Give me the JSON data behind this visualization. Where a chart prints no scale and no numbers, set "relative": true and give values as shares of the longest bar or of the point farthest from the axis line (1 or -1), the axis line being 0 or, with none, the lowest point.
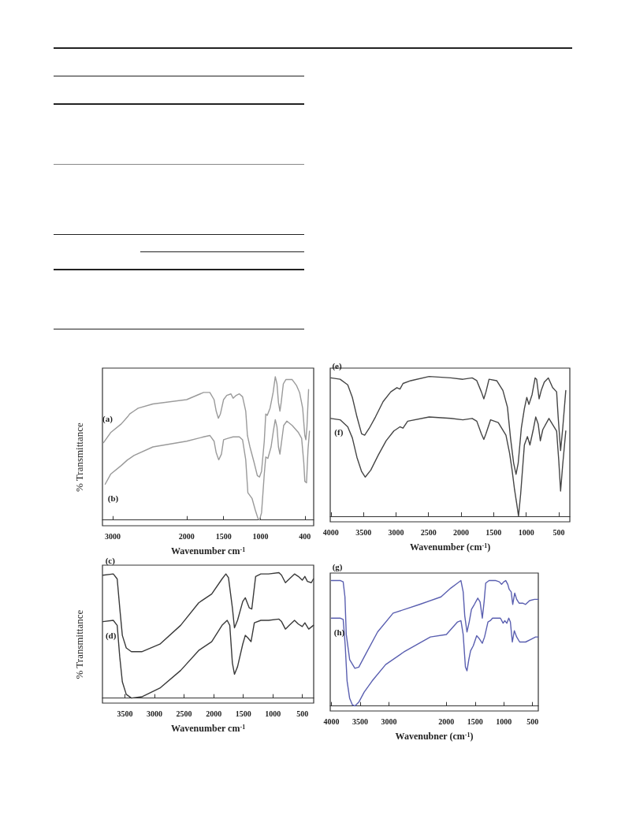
{
  "chart_data": [
    {
      "type": "line",
      "relative": true,
      "xlabel": "Wavenumber cm$^{-1}$",
      "ylabel": "% Transmittance",
      "xlim": [
        3140,
        280
      ],
      "xticks": [
        3000,
        2000,
        1500,
        1000,
        400
      ],
      "grid": false,
      "legend": false,
      "marker": "none",
      "line_style": "solid",
      "series": [
        {
          "name": "(a)",
          "color": "#9a9a9a",
          "x": [
            3126,
            3029,
            2886,
            2800,
            2771,
            2714,
            2657,
            2457,
            2000,
            1771,
            1686,
            1629,
            1600,
            1571,
            1543,
            1500,
            1457,
            1400,
            1371,
            1329,
            1286,
            1243,
            1200,
            1177,
            1143,
            1086,
            1043,
            1014,
            986,
            949,
            929,
            909,
            871,
            829,
            800,
            777,
            757,
            737,
            720,
            691,
            657,
            571,
            514,
            471,
            429,
            400,
            386,
            371,
            349
          ],
          "values": [
            0.54,
            0.61,
            0.67,
            0.72,
            0.74,
            0.76,
            0.78,
            0.81,
            0.84,
            0.89,
            0.89,
            0.84,
            0.76,
            0.71,
            0.74,
            0.84,
            0.87,
            0.88,
            0.85,
            0.87,
            0.88,
            0.86,
            0.76,
            0.59,
            0.51,
            0.4,
            0.31,
            0.3,
            0.34,
            0.55,
            0.74,
            0.73,
            0.78,
            0.89,
            1,
            0.95,
            0.82,
            0.76,
            0.82,
            0.95,
            0.98,
            0.98,
            0.94,
            0.89,
            0.78,
            0.59,
            0.56,
            0.65,
            0.91
          ]
        },
        {
          "name": "(b)",
          "color": "#9a9a9a",
          "x": [
            3103,
            3029,
            2886,
            2800,
            2771,
            2714,
            2457,
            2000,
            1771,
            1686,
            1629,
            1600,
            1566,
            1529,
            1500,
            1443,
            1371,
            1286,
            1243,
            1200,
            1171,
            1114,
            1071,
            1034,
            1014,
            986,
            949,
            929,
            900,
            857,
            823,
            800,
            777,
            757,
            737,
            714,
            686,
            643,
            571,
            486,
            443,
            414,
            400,
            377,
            357,
            337
          ],
          "values": [
            0.25,
            0.32,
            0.38,
            0.42,
            0.43,
            0.45,
            0.51,
            0.55,
            0.58,
            0.59,
            0.55,
            0.47,
            0.42,
            0.46,
            0.56,
            0.57,
            0.58,
            0.58,
            0.56,
            0.42,
            0.19,
            0.15,
            0.07,
            0.01,
            0,
            0.05,
            0.32,
            0.44,
            0.43,
            0.51,
            0.63,
            0.7,
            0.65,
            0.51,
            0.46,
            0.55,
            0.66,
            0.69,
            0.66,
            0.61,
            0.57,
            0.4,
            0.27,
            0.26,
            0.49,
            0.62
          ]
        }
      ]
    },
    {
      "type": "line",
      "relative": true,
      "xlabel": "Wavenumber (cm$^{-1}$)",
      "xlim": [
        4010,
        330
      ],
      "xticks": [
        4000,
        3500,
        3000,
        2500,
        2000,
        1500,
        1000,
        500
      ],
      "grid": false,
      "legend": false,
      "marker": "none",
      "line_style": "solid",
      "series": [
        {
          "name": "(e)",
          "color": "#454545",
          "x": [
            4000,
            3858,
            3741,
            3670,
            3599,
            3528,
            3481,
            3410,
            3316,
            3198,
            3080,
            2986,
            2939,
            2892,
            2774,
            2491,
            2160,
            1972,
            1830,
            1759,
            1689,
            1651,
            1618,
            1571,
            1453,
            1358,
            1288,
            1241,
            1193,
            1156,
            1123,
            1075,
            1028,
            991,
            958,
            910,
            863,
            840,
            802,
            769,
            722,
            660,
            594,
            533,
            509,
            472,
            439,
            392
          ],
          "values": [
            0.99,
            0.98,
            0.94,
            0.85,
            0.71,
            0.59,
            0.58,
            0.63,
            0.71,
            0.82,
            0.89,
            0.92,
            0.91,
            0.95,
            0.97,
            1,
            0.99,
            0.98,
            0.99,
            0.97,
            0.89,
            0.84,
            0.89,
            0.98,
            0.97,
            0.9,
            0.78,
            0.56,
            0.38,
            0.3,
            0.38,
            0.63,
            0.77,
            0.85,
            0.8,
            0.87,
            0.99,
            0.98,
            0.84,
            0.9,
            0.96,
            0.99,
            0.92,
            0.89,
            0.71,
            0.47,
            0.63,
            0.9
          ]
        },
        {
          "name": "(f)",
          "color": "#454545",
          "x": [
            4000,
            3858,
            3741,
            3670,
            3599,
            3528,
            3472,
            3387,
            3269,
            3151,
            3033,
            2939,
            2892,
            2821,
            2491,
            2160,
            1972,
            1830,
            1759,
            1689,
            1651,
            1618,
            1547,
            1429,
            1311,
            1255,
            1217,
            1179,
            1146,
            1118,
            1085,
            1028,
            981,
            943,
            887,
            854,
            816,
            783,
            745,
            651,
            533,
            500,
            472,
            439,
            392
          ],
          "values": [
            0.7,
            0.69,
            0.64,
            0.56,
            0.42,
            0.32,
            0.28,
            0.33,
            0.44,
            0.54,
            0.61,
            0.64,
            0.63,
            0.68,
            0.71,
            0.7,
            0.69,
            0.7,
            0.68,
            0.59,
            0.55,
            0.59,
            0.69,
            0.67,
            0.58,
            0.45,
            0.33,
            0.19,
            0.09,
            0,
            0.16,
            0.51,
            0.57,
            0.51,
            0.63,
            0.71,
            0.66,
            0.54,
            0.62,
            0.7,
            0.61,
            0.4,
            0.18,
            0.37,
            0.61
          ]
        }
      ]
    },
    {
      "type": "line",
      "relative": true,
      "xlabel": "Wavenumber cm$^{-1}$",
      "ylabel": "% Transmittance",
      "xlim": [
        3880,
        310
      ],
      "xticks": [
        3500,
        3000,
        2500,
        2000,
        1500,
        1000,
        500
      ],
      "grid": false,
      "legend": false,
      "marker": "none",
      "line_style": "solid",
      "series": [
        {
          "name": "(c)",
          "color": "#3a3a3a",
          "x": [
            3872,
            3697,
            3631,
            3588,
            3544,
            3478,
            3391,
            3216,
            2909,
            2559,
            2253,
            2034,
            1859,
            1794,
            1750,
            1684,
            1649,
            1597,
            1509,
            1466,
            1400,
            1356,
            1291,
            1203,
            1072,
            897,
            853,
            788,
            722,
            634,
            569,
            503,
            459,
            416,
            350,
            315
          ],
          "values": [
            0.98,
            0.99,
            0.95,
            0.72,
            0.5,
            0.4,
            0.37,
            0.37,
            0.43,
            0.58,
            0.76,
            0.83,
            0.95,
            0.99,
            0.96,
            0.72,
            0.56,
            0.62,
            0.77,
            0.8,
            0.72,
            0.71,
            0.97,
            0.99,
            0.99,
            1,
            0.98,
            0.92,
            0.95,
            0.99,
            0.97,
            0.94,
            0.97,
            0.93,
            0.92,
            0.95
          ]
        },
        {
          "name": "(d)",
          "color": "#3a3a3a",
          "x": [
            3872,
            3697,
            3631,
            3588,
            3544,
            3478,
            3391,
            3216,
            2909,
            2559,
            2253,
            2034,
            1859,
            1772,
            1728,
            1684,
            1649,
            1597,
            1509,
            1466,
            1422,
            1369,
            1313,
            1203,
            1072,
            897,
            853,
            788,
            722,
            634,
            569,
            503,
            459,
            394,
            315
          ],
          "values": [
            0.61,
            0.62,
            0.58,
            0.33,
            0.13,
            0.03,
            0,
            0.01,
            0.08,
            0.22,
            0.38,
            0.45,
            0.58,
            0.62,
            0.58,
            0.28,
            0.19,
            0.25,
            0.43,
            0.5,
            0.48,
            0.45,
            0.6,
            0.62,
            0.62,
            0.63,
            0.61,
            0.55,
            0.58,
            0.62,
            0.59,
            0.57,
            0.6,
            0.55,
            0.58
          ]
        }
      ]
    },
    {
      "type": "line",
      "relative": true,
      "xlabel": "Wavenubner (cm$^{-1}$)",
      "xlim": [
        4020,
        400
      ],
      "xticks": [
        4000,
        3500,
        3000,
        2000,
        1500,
        1000,
        500
      ],
      "grid": false,
      "legend": false,
      "marker": "none",
      "line_style": "solid",
      "series": [
        {
          "name": "(g)",
          "color": "#5a5fb0",
          "x": [
            4000,
            3841,
            3795,
            3764,
            3741,
            3682,
            3591,
            3523,
            3407,
            3196,
            2926,
            2463,
            2093,
            1922,
            1805,
            1746,
            1707,
            1680,
            1641,
            1602,
            1563,
            1512,
            1453,
            1413,
            1374,
            1343,
            1315,
            1256,
            1138,
            1079,
            1039,
            1000,
            966,
            931,
            907,
            872,
            845,
            810,
            776,
            734,
            672,
            621,
            552,
            466,
            403
          ],
          "values": [
            1,
            1,
            0.99,
            0.87,
            0.57,
            0.37,
            0.3,
            0.31,
            0.41,
            0.59,
            0.74,
            0.81,
            0.87,
            0.94,
            0.98,
            1,
            0.91,
            0.72,
            0.59,
            0.67,
            0.77,
            0.81,
            0.86,
            0.83,
            0.7,
            0.83,
            0.98,
            1,
            1,
            0.99,
            0.97,
            0.99,
            1,
            0.97,
            0.93,
            0.91,
            0.81,
            0.9,
            0.85,
            0.82,
            0.82,
            0.81,
            0.84,
            0.85,
            0.85
          ]
        },
        {
          "name": "(h)",
          "color": "#5a5fb0",
          "x": [
            4000,
            3841,
            3795,
            3759,
            3727,
            3682,
            3636,
            3591,
            3523,
            3430,
            3290,
            3056,
            2741,
            2278,
            2000,
            1805,
            1746,
            1707,
            1668,
            1641,
            1609,
            1578,
            1531,
            1472,
            1433,
            1374,
            1335,
            1276,
            1236,
            1197,
            1059,
            1012,
            983,
            948,
            914,
            886,
            852,
            817,
            776,
            724,
            672,
            621,
            534,
            448,
            403
          ],
          "values": [
            0.7,
            0.7,
            0.69,
            0.48,
            0.2,
            0.06,
            0.01,
            0,
            0.03,
            0.11,
            0.2,
            0.33,
            0.43,
            0.55,
            0.57,
            0.67,
            0.68,
            0.57,
            0.31,
            0.28,
            0.37,
            0.44,
            0.48,
            0.56,
            0.54,
            0.5,
            0.55,
            0.67,
            0.68,
            0.7,
            0.7,
            0.66,
            0.68,
            0.66,
            0.7,
            0.67,
            0.51,
            0.6,
            0.55,
            0.51,
            0.51,
            0.51,
            0.53,
            0.55,
            0.55
          ]
        }
      ]
    }
  ]
}
